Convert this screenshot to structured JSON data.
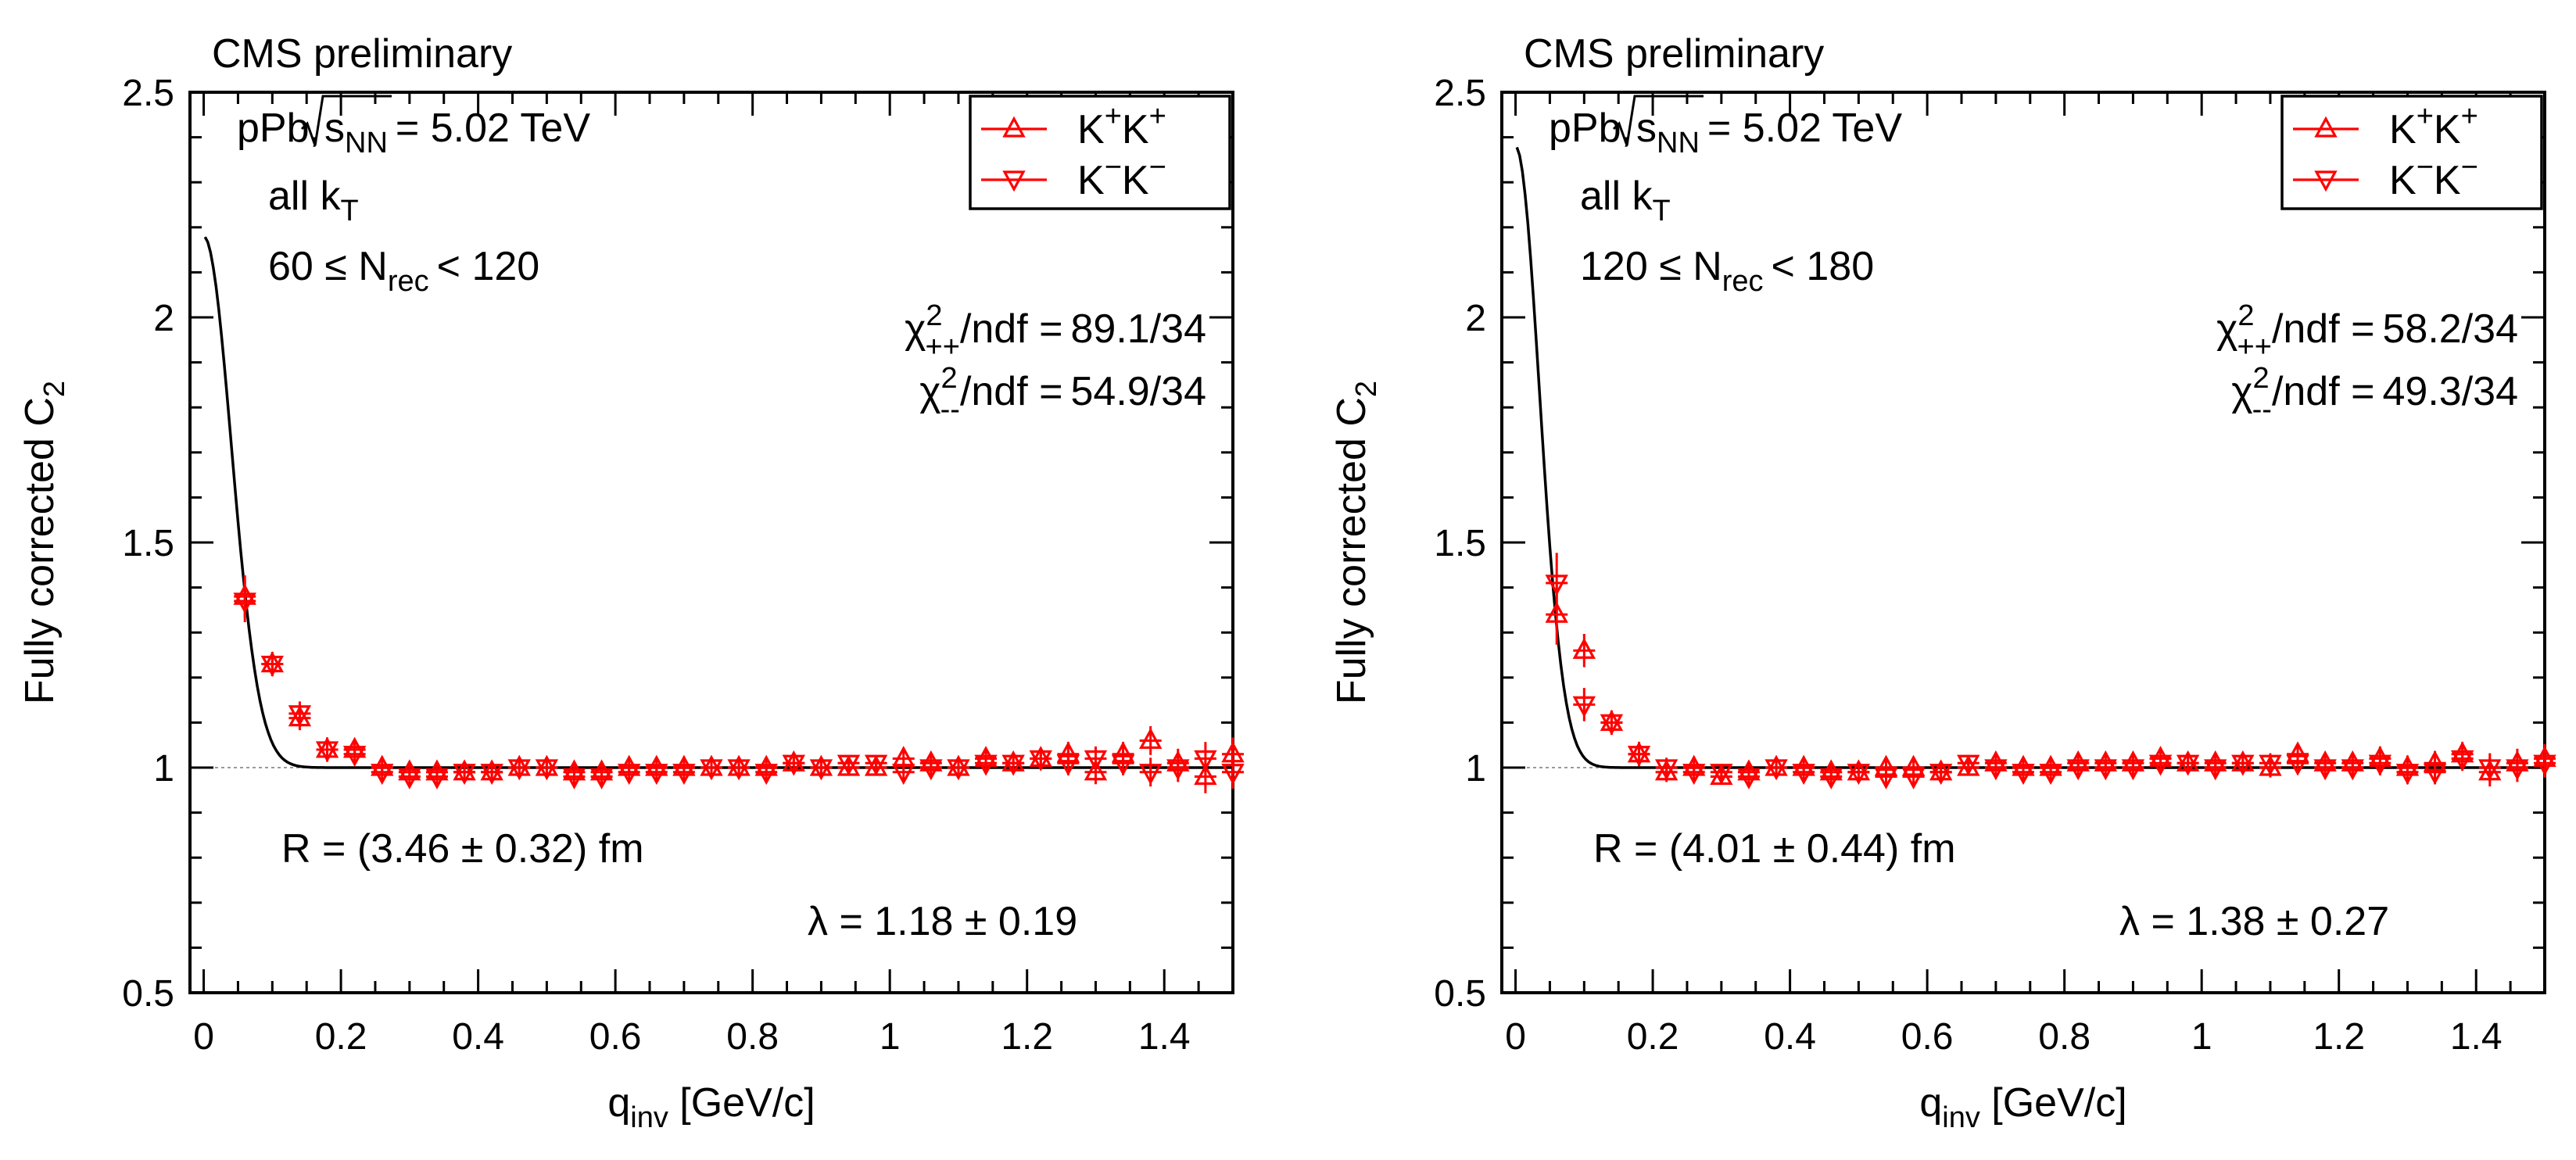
{
  "figure": {
    "colors": {
      "data": "#ff0000",
      "fit": "#000000",
      "reference": "#9a9a9a"
    },
    "common": {
      "header": "CMS preliminary",
      "system_prefix": "pPb,",
      "sqrt_s": "s",
      "sqrt_s_sub": "NN",
      "energy": "= 5.02 TeV",
      "kt_prefix": "all k",
      "kt_sub": "T",
      "legend_pp_main": "K",
      "legend_pp_sup": "+",
      "legend_mm_main": "K",
      "legend_mm_sup": "−",
      "chi2_symbol": "χ",
      "chi2_sup": "2",
      "sub_pp": "++",
      "sub_mm": "--",
      "ndf_label": "/ndf =",
      "ylabel_main": "Fully corrected C",
      "ylabel_sub": "2",
      "xlabel_main": "q",
      "xlabel_sub": "inv",
      "xlabel_unit": " [GeV/c]"
    }
  },
  "chart_data": [
    {
      "type": "scatter",
      "title": "CMS preliminary",
      "xlabel": "q_inv [GeV/c]",
      "ylabel": "Fully corrected C_2",
      "xlim": [
        -0.02,
        1.5
      ],
      "ylim": [
        0.5,
        2.5
      ],
      "xticks": [
        0,
        0.2,
        0.4,
        0.6,
        0.8,
        1,
        1.2,
        1.4
      ],
      "yticks": [
        0.5,
        1,
        1.5,
        2,
        2.5
      ],
      "xtick_labels": [
        "0",
        "0.2",
        "0.4",
        "0.6",
        "0.8",
        "1",
        "1.2",
        "1.4"
      ],
      "ytick_labels": [
        "0.5",
        "1",
        "1.5",
        "2",
        "2.5"
      ],
      "legend": [
        "K⁺K⁺",
        "K⁻K⁻"
      ],
      "legend_position": "top-right",
      "nrec_low": "60 ≤ N",
      "nrec_sub": "rec",
      "nrec_high": "< 120",
      "chi2_pp": "89.1/34",
      "chi2_mm": "54.9/34",
      "radius_text": "R = (3.46 ± 0.32) fm",
      "lambda_text": "λ = 1.18 ± 0.19",
      "fit": {
        "R_fm": 3.46,
        "lambda": 1.18,
        "baseline": 1.0,
        "start_x": 0.002
      },
      "series": [
        {
          "name": "K⁺K⁺",
          "marker": "triangle-up",
          "x": [
            0.06,
            0.1,
            0.14,
            0.18,
            0.22,
            0.26,
            0.3,
            0.34,
            0.38,
            0.42,
            0.46,
            0.5,
            0.54,
            0.58,
            0.62,
            0.66,
            0.7,
            0.74,
            0.78,
            0.82,
            0.86,
            0.9,
            0.94,
            0.98,
            1.02,
            1.06,
            1.1,
            1.14,
            1.18,
            1.22,
            1.26,
            1.3,
            1.34,
            1.38,
            1.42,
            1.46,
            1.5
          ],
          "y": [
            1.38,
            1.23,
            1.11,
            1.04,
            1.04,
            1.0,
            0.99,
            0.99,
            0.99,
            0.99,
            1.0,
            1.0,
            0.99,
            0.99,
            1.0,
            1.0,
            1.0,
            1.0,
            1.0,
            1.0,
            1.01,
            1.0,
            1.0,
            1.0,
            1.02,
            1.01,
            1.0,
            1.02,
            1.01,
            1.02,
            1.03,
            0.99,
            1.03,
            1.06,
            1.01,
            0.98,
            1.03
          ],
          "err": [
            0.04,
            0.02,
            0.02,
            0.02,
            0.015,
            0.01,
            0.01,
            0.01,
            0.01,
            0.01,
            0.01,
            0.01,
            0.01,
            0.01,
            0.01,
            0.01,
            0.01,
            0.01,
            0.01,
            0.01,
            0.01,
            0.01,
            0.01,
            0.01,
            0.015,
            0.015,
            0.015,
            0.015,
            0.015,
            0.015,
            0.02,
            0.02,
            0.02,
            0.025,
            0.025,
            0.03,
            0.03
          ]
        },
        {
          "name": "K⁻K⁻",
          "marker": "triangle-down",
          "x": [
            0.06,
            0.1,
            0.14,
            0.18,
            0.22,
            0.26,
            0.3,
            0.34,
            0.38,
            0.42,
            0.46,
            0.5,
            0.54,
            0.58,
            0.62,
            0.66,
            0.7,
            0.74,
            0.78,
            0.82,
            0.86,
            0.9,
            0.94,
            0.98,
            1.02,
            1.06,
            1.1,
            1.14,
            1.18,
            1.22,
            1.26,
            1.3,
            1.34,
            1.38,
            1.42,
            1.46,
            1.5
          ],
          "y": [
            1.37,
            1.23,
            1.12,
            1.04,
            1.03,
            0.99,
            0.98,
            0.98,
            0.99,
            0.99,
            1.0,
            1.0,
            0.98,
            0.98,
            0.99,
            0.99,
            0.99,
            1.0,
            1.0,
            0.99,
            1.01,
            1.0,
            1.01,
            1.01,
            0.99,
            1.0,
            1.0,
            1.01,
            1.01,
            1.02,
            1.01,
            1.02,
            1.01,
            0.99,
            1.0,
            1.02,
            0.99
          ],
          "err": [
            0.04,
            0.02,
            0.02,
            0.02,
            0.015,
            0.01,
            0.01,
            0.01,
            0.01,
            0.01,
            0.01,
            0.01,
            0.01,
            0.01,
            0.01,
            0.01,
            0.01,
            0.01,
            0.01,
            0.01,
            0.01,
            0.01,
            0.01,
            0.01,
            0.015,
            0.015,
            0.015,
            0.015,
            0.015,
            0.015,
            0.02,
            0.02,
            0.02,
            0.025,
            0.025,
            0.03,
            0.03
          ]
        }
      ]
    },
    {
      "type": "scatter",
      "title": "CMS preliminary",
      "xlabel": "q_inv [GeV/c]",
      "ylabel": "Fully corrected C_2",
      "xlim": [
        -0.02,
        1.5
      ],
      "ylim": [
        0.5,
        2.5
      ],
      "xticks": [
        0,
        0.2,
        0.4,
        0.6,
        0.8,
        1,
        1.2,
        1.4
      ],
      "yticks": [
        0.5,
        1,
        1.5,
        2,
        2.5
      ],
      "xtick_labels": [
        "0",
        "0.2",
        "0.4",
        "0.6",
        "0.8",
        "1",
        "1.2",
        "1.4"
      ],
      "ytick_labels": [
        "0.5",
        "1",
        "1.5",
        "2",
        "2.5"
      ],
      "legend": [
        "K⁺K⁺",
        "K⁻K⁻"
      ],
      "legend_position": "top-right",
      "nrec_low": "120 ≤ N",
      "nrec_sub": "rec",
      "nrec_high": "< 180",
      "chi2_pp": "58.2/34",
      "chi2_mm": "49.3/34",
      "radius_text": "R = (4.01 ± 0.44) fm",
      "lambda_text": "λ = 1.38 ± 0.27",
      "fit": {
        "R_fm": 4.01,
        "lambda": 1.38,
        "baseline": 1.0,
        "start_x": 0.002
      },
      "series": [
        {
          "name": "K⁺K⁺",
          "marker": "triangle-up",
          "x": [
            0.06,
            0.1,
            0.14,
            0.18,
            0.22,
            0.26,
            0.3,
            0.34,
            0.38,
            0.42,
            0.46,
            0.5,
            0.54,
            0.58,
            0.62,
            0.66,
            0.7,
            0.74,
            0.78,
            0.82,
            0.86,
            0.9,
            0.94,
            0.98,
            1.02,
            1.06,
            1.1,
            1.14,
            1.18,
            1.22,
            1.26,
            1.3,
            1.34,
            1.38,
            1.42,
            1.46,
            1.5
          ],
          "y": [
            1.34,
            1.26,
            1.1,
            1.03,
            0.99,
            1.0,
            0.98,
            0.99,
            1.0,
            1.0,
            0.99,
            0.99,
            1.0,
            1.0,
            0.99,
            1.0,
            1.01,
            1.0,
            1.0,
            1.01,
            1.01,
            1.01,
            1.02,
            1.01,
            1.01,
            1.01,
            1.0,
            1.03,
            1.01,
            1.01,
            1.02,
            1.0,
            1.01,
            1.03,
            0.99,
            1.01,
            1.02
          ],
          "err": [
            0.06,
            0.03,
            0.02,
            0.02,
            0.015,
            0.01,
            0.01,
            0.01,
            0.01,
            0.01,
            0.01,
            0.01,
            0.01,
            0.01,
            0.01,
            0.01,
            0.01,
            0.01,
            0.01,
            0.01,
            0.01,
            0.01,
            0.01,
            0.01,
            0.015,
            0.015,
            0.015,
            0.015,
            0.015,
            0.015,
            0.02,
            0.02,
            0.02,
            0.02,
            0.025,
            0.025,
            0.025
          ]
        },
        {
          "name": "K⁻K⁻",
          "marker": "triangle-down",
          "x": [
            0.06,
            0.1,
            0.14,
            0.18,
            0.22,
            0.26,
            0.3,
            0.34,
            0.38,
            0.42,
            0.46,
            0.5,
            0.54,
            0.58,
            0.62,
            0.66,
            0.7,
            0.74,
            0.78,
            0.82,
            0.86,
            0.9,
            0.94,
            0.98,
            1.02,
            1.06,
            1.1,
            1.14,
            1.18,
            1.22,
            1.26,
            1.3,
            1.34,
            1.38,
            1.42,
            1.46,
            1.5
          ],
          "y": [
            1.41,
            1.14,
            1.1,
            1.03,
            1.0,
            0.99,
            0.99,
            0.98,
            1.0,
            0.99,
            0.98,
            0.99,
            0.98,
            0.98,
            0.99,
            1.01,
            1.0,
            0.99,
            0.99,
            1.0,
            1.0,
            1.0,
            1.01,
            1.01,
            1.0,
            1.01,
            1.01,
            1.01,
            1.0,
            1.0,
            1.01,
            0.99,
            0.99,
            1.02,
            1.0,
            1.0,
            1.01
          ],
          "err": [
            0.06,
            0.03,
            0.02,
            0.02,
            0.015,
            0.01,
            0.01,
            0.01,
            0.01,
            0.01,
            0.01,
            0.01,
            0.01,
            0.01,
            0.01,
            0.01,
            0.01,
            0.01,
            0.01,
            0.01,
            0.01,
            0.01,
            0.01,
            0.01,
            0.015,
            0.015,
            0.015,
            0.015,
            0.015,
            0.015,
            0.02,
            0.02,
            0.02,
            0.02,
            0.025,
            0.025,
            0.025
          ]
        }
      ]
    }
  ]
}
